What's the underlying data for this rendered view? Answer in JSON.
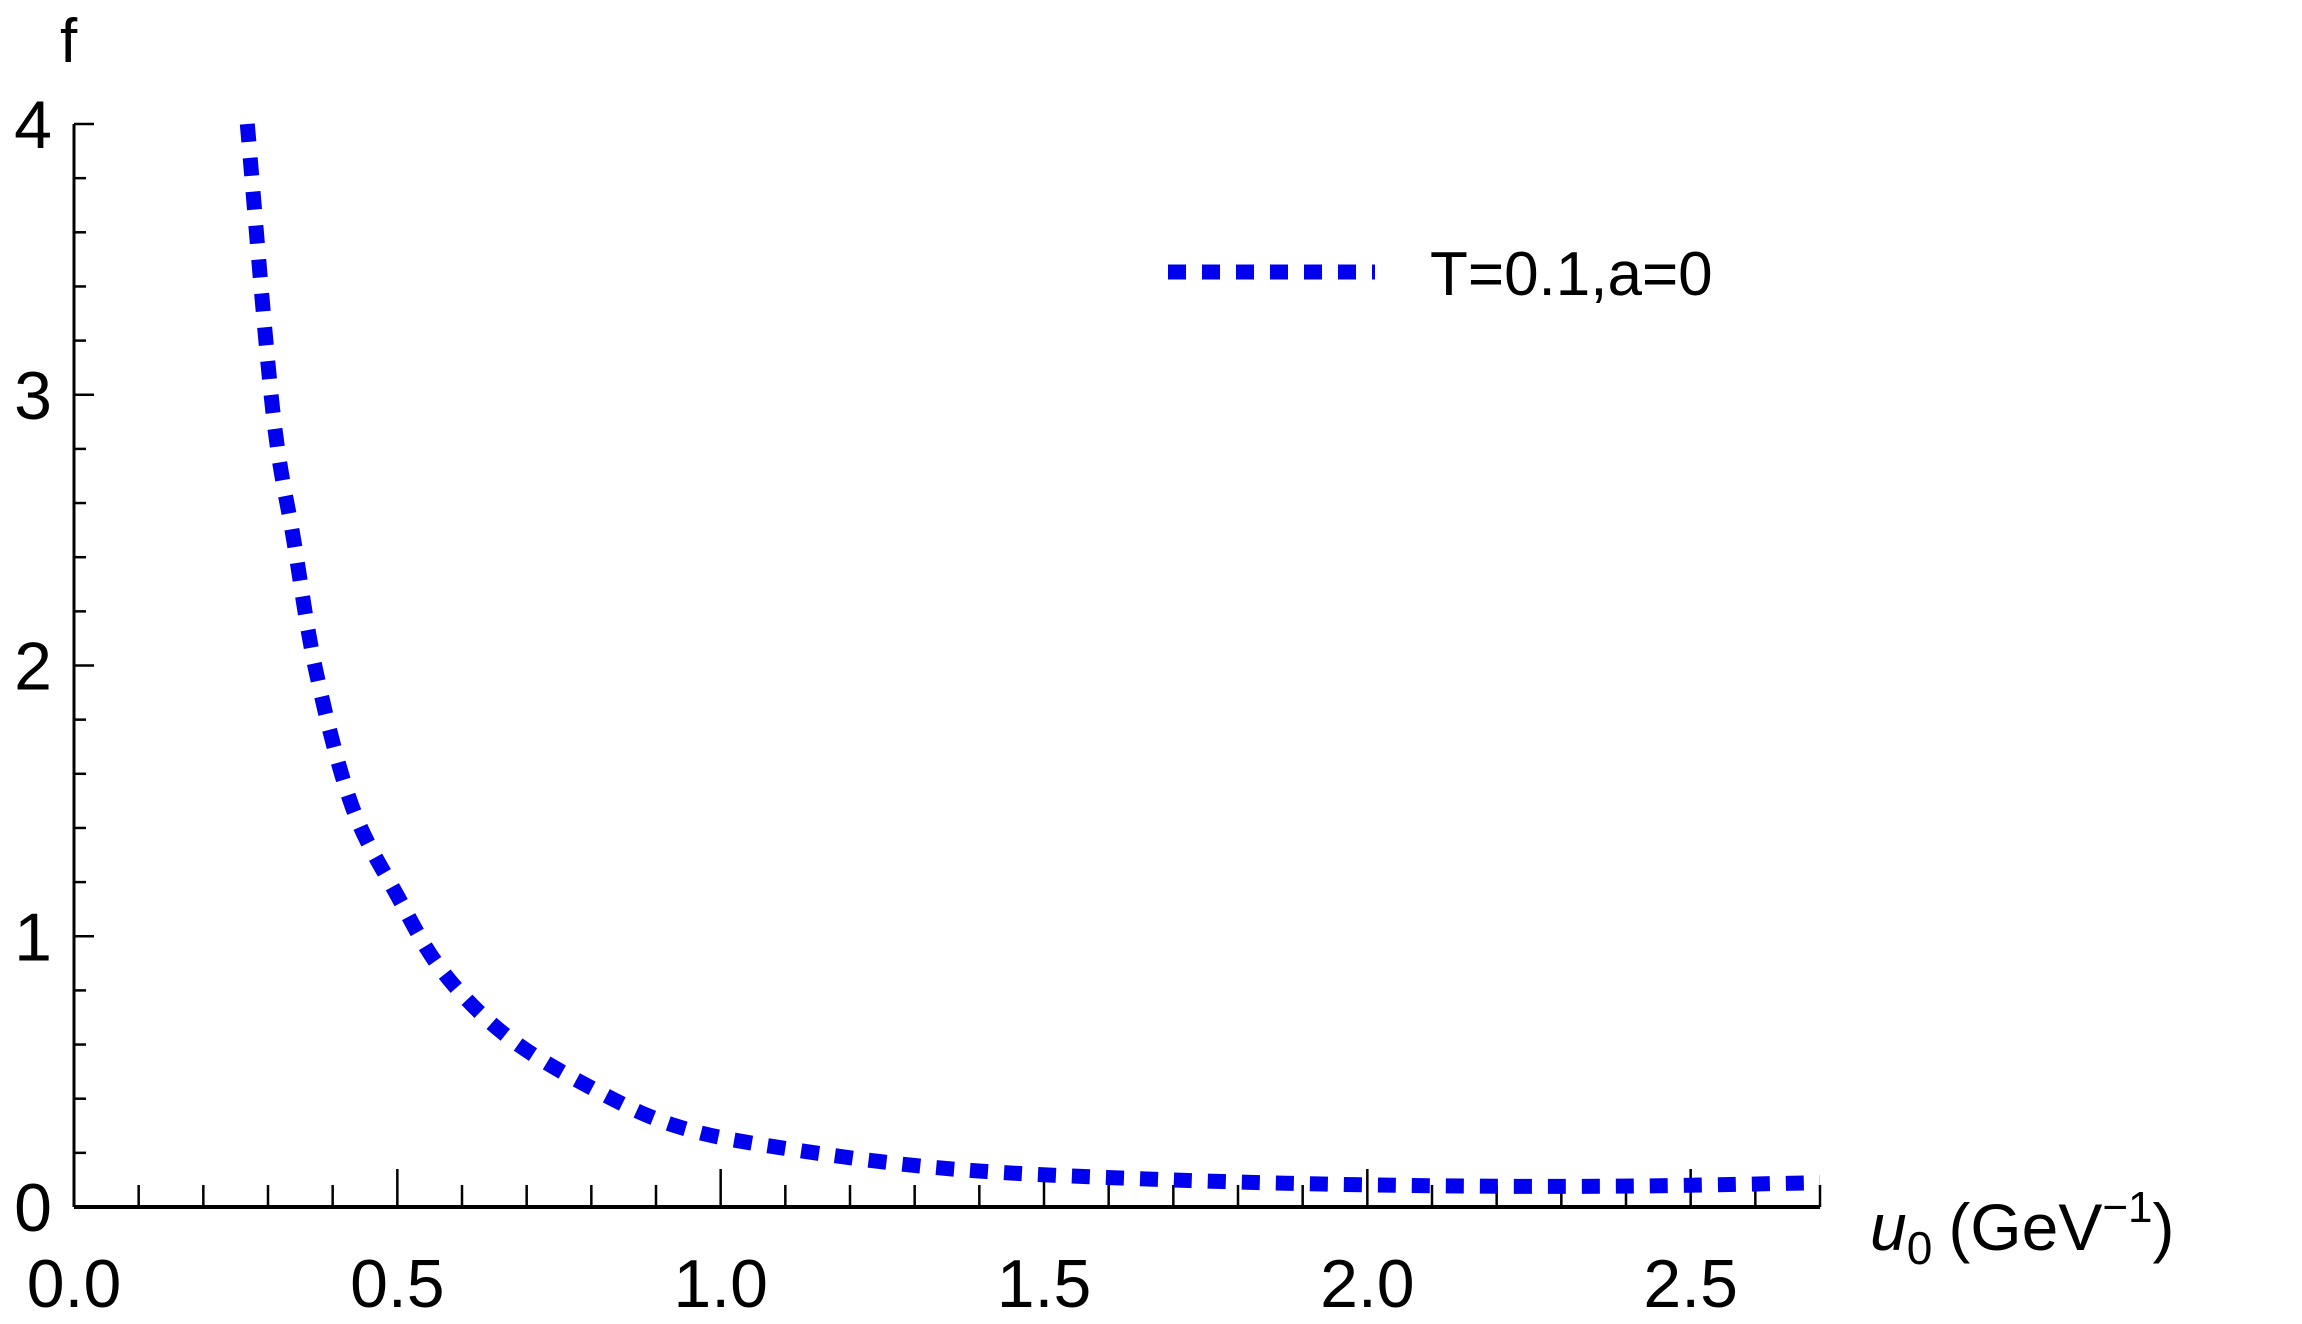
{
  "chart_data": {
    "type": "line",
    "title": "",
    "ylabel": "f",
    "xlabel": "u",
    "xlabel_sub": "0",
    "xlabel_unit": "(GeV",
    "xlabel_unit_sup": "−1",
    "xlabel_unit_close": ")",
    "xlim": [
      0,
      2.7
    ],
    "ylim": [
      0,
      4
    ],
    "xticks": [
      0.0,
      0.5,
      1.0,
      1.5,
      2.0,
      2.5
    ],
    "xtick_labels": [
      "0.0",
      "0.5",
      "1.0",
      "1.5",
      "2.0",
      "2.5"
    ],
    "yticks": [
      0,
      1,
      2,
      3,
      4
    ],
    "ytick_labels": [
      "0",
      "1",
      "2",
      "3",
      "4"
    ],
    "grid": false,
    "legend_position": "top-right",
    "series": [
      {
        "name": "T=0.1,a=0",
        "color": "#0000ee",
        "style": "dotted",
        "x": [
          0.268,
          0.307,
          0.34,
          0.375,
          0.43,
          0.5,
          0.57,
          0.67,
          0.8,
          0.93,
          1.09,
          1.36,
          1.7,
          2.05,
          2.39,
          2.7
        ],
        "y": [
          4.0,
          2.95,
          2.46,
          1.97,
          1.48,
          1.15,
          0.87,
          0.63,
          0.44,
          0.3,
          0.22,
          0.14,
          0.1,
          0.08,
          0.077,
          0.09
        ]
      }
    ]
  }
}
